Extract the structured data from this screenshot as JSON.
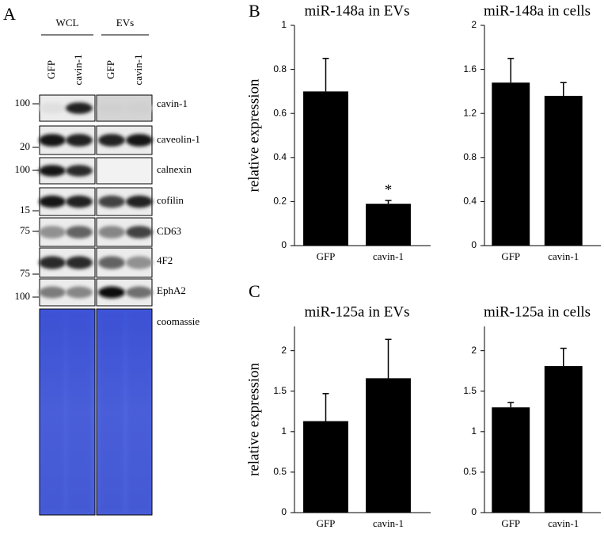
{
  "panel_labels": [
    "A",
    "B",
    "C"
  ],
  "blot": {
    "groups": [
      "WCL",
      "EVs"
    ],
    "lanes": [
      "GFP",
      "cavin-1",
      "GFP",
      "cavin-1"
    ],
    "rows": [
      "cavin-1",
      "caveolin-1",
      "calnexin",
      "cofilin",
      "CD63",
      "4F2",
      "EphA2",
      "coomassie"
    ],
    "markers": [
      "100",
      "20",
      "100",
      "15",
      "75",
      "75",
      "100"
    ]
  },
  "chart_data": [
    {
      "type": "bar",
      "title": "miR-148a in EVs",
      "ylabel": "relative expression",
      "categories": [
        "GFP",
        "cavin-1"
      ],
      "values": [
        0.7,
        0.19
      ],
      "errors": [
        0.15,
        0.015
      ],
      "color": "#000000",
      "ylim": [
        0,
        1
      ],
      "yticks": [
        0,
        0.2,
        0.4,
        0.6,
        0.8,
        1
      ],
      "annotation": "*"
    },
    {
      "type": "bar",
      "title": "miR-148a in cells",
      "categories": [
        "GFP",
        "cavin-1"
      ],
      "values": [
        1.48,
        1.36
      ],
      "errors": [
        0.22,
        0.12
      ],
      "color": "#000000",
      "ylim": [
        0,
        2
      ],
      "yticks": [
        0,
        0.4,
        0.8,
        1.2,
        1.6,
        2
      ]
    },
    {
      "type": "bar",
      "title": "miR-125a in EVs",
      "ylabel": "relative expression",
      "categories": [
        "GFP",
        "cavin-1"
      ],
      "values": [
        1.13,
        1.66
      ],
      "errors": [
        0.34,
        0.48
      ],
      "color": "#000000",
      "ylim": [
        0,
        2.3
      ],
      "yticks": [
        0,
        0.5,
        1,
        1.5,
        2
      ]
    },
    {
      "type": "bar",
      "title": "miR-125a in cells",
      "categories": [
        "GFP",
        "cavin-1"
      ],
      "values": [
        1.3,
        1.81
      ],
      "errors": [
        0.06,
        0.22
      ],
      "color": "#000000",
      "ylim": [
        0,
        2.3
      ],
      "yticks": [
        0,
        0.5,
        1,
        1.5,
        2
      ]
    }
  ]
}
